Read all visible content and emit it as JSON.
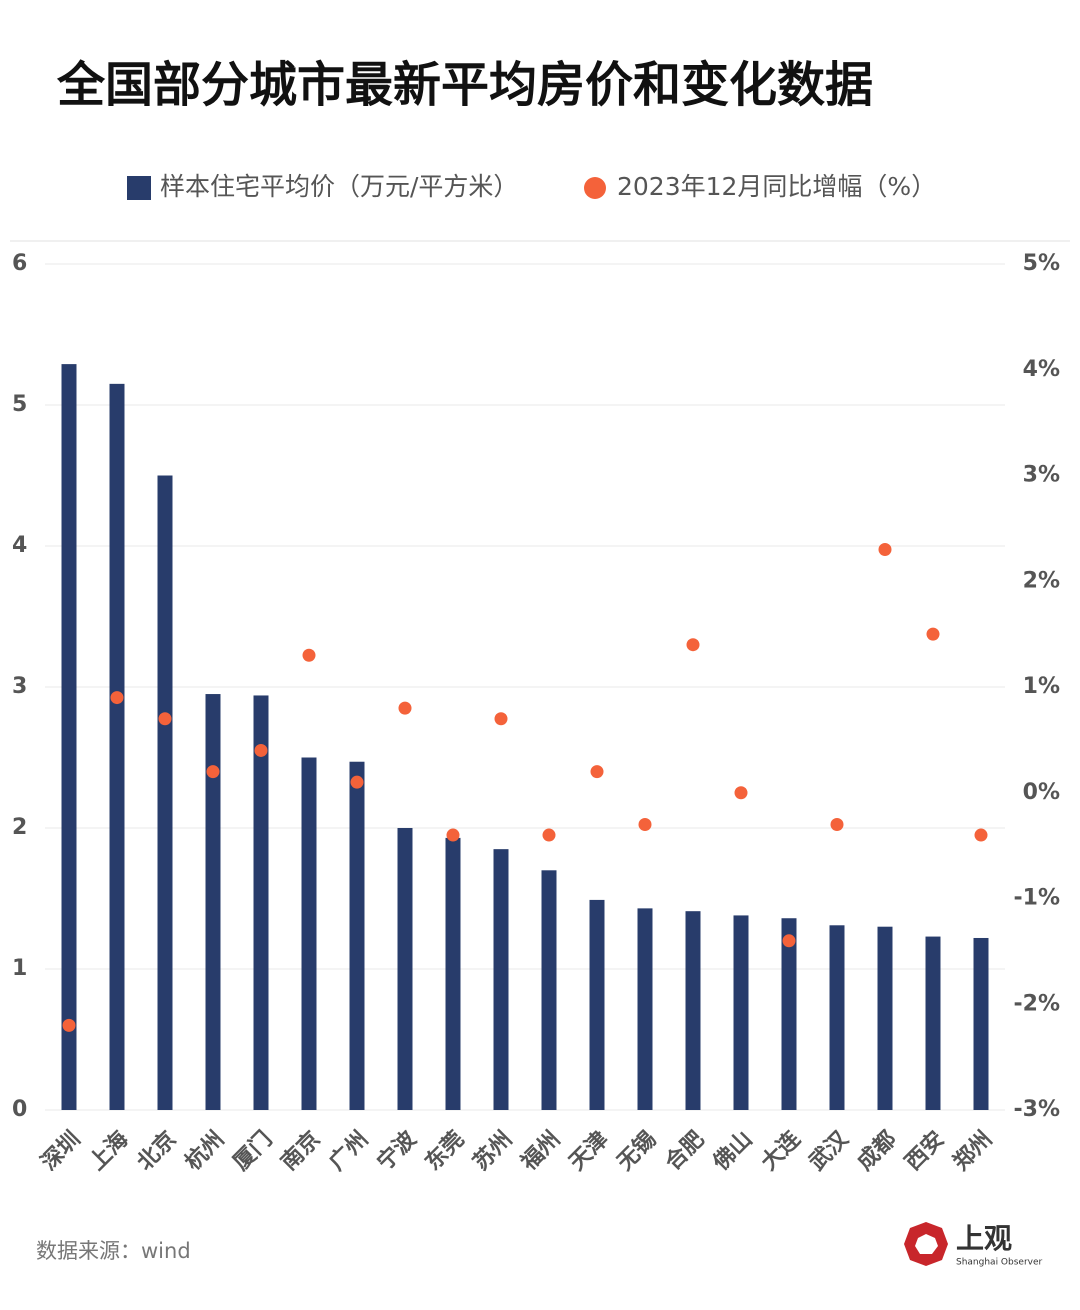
{
  "chart_data": {
    "type": "bar",
    "title": "全国部分城市最新平均房价和变化数据",
    "categories": [
      "深圳",
      "上海",
      "北京",
      "杭州",
      "厦门",
      "南京",
      "广州",
      "宁波",
      "东莞",
      "苏州",
      "福州",
      "天津",
      "无锡",
      "合肥",
      "佛山",
      "大连",
      "武汉",
      "成都",
      "西安",
      "郑州"
    ],
    "series": [
      {
        "name": "样本住宅平均价（万元/平方米）",
        "type": "bar",
        "color": "#283c6b",
        "values": [
          5.29,
          5.15,
          4.5,
          2.95,
          2.94,
          2.5,
          2.47,
          2.0,
          1.93,
          1.85,
          1.7,
          1.49,
          1.43,
          1.41,
          1.38,
          1.36,
          1.31,
          1.3,
          1.23,
          1.22
        ]
      },
      {
        "name": "2023年12月同比增幅（%）",
        "type": "scatter",
        "axis": "y2",
        "color": "#f4623a",
        "values": [
          -2.2,
          0.9,
          0.7,
          0.2,
          0.4,
          1.3,
          0.1,
          0.8,
          -0.4,
          0.7,
          -0.4,
          0.2,
          -0.3,
          1.4,
          0,
          -1.4,
          -0.3,
          2.3,
          1.5,
          -0.4
        ]
      }
    ],
    "ylim": [
      0,
      6
    ],
    "yticks": [
      0,
      1,
      2,
      3,
      4,
      5,
      6
    ],
    "y2lim": [
      -3,
      5
    ],
    "y2ticks": [
      {
        "value": -3,
        "label": "-3%"
      },
      {
        "value": -2,
        "label": "-2%"
      },
      {
        "value": -1,
        "label": "-1%"
      },
      {
        "value": 0,
        "label": "0%"
      },
      {
        "value": 1,
        "label": "1%"
      },
      {
        "value": 2,
        "label": "2%"
      },
      {
        "value": 3,
        "label": "3%"
      },
      {
        "value": 4,
        "label": "4%"
      },
      {
        "value": 5,
        "label": "5%"
      }
    ],
    "grid": true,
    "legend": "top"
  },
  "footer": {
    "source": "数据来源：wind",
    "brand": "上观",
    "brand_en": "Shanghai Observer"
  }
}
